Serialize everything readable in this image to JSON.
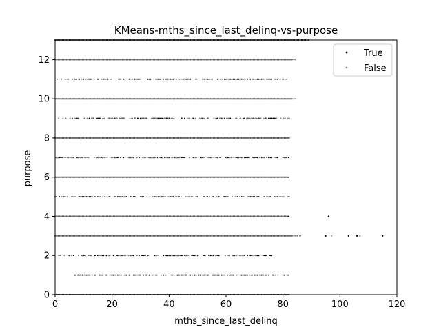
{
  "chart_data": {
    "type": "scatter",
    "title": "KMeans-mths_since_last_delinq-vs-purpose",
    "xlabel": "mths_since_last_delinq",
    "ylabel": "purpose",
    "xlim": [
      0,
      120
    ],
    "ylim": [
      0,
      13
    ],
    "xticks": [
      0,
      20,
      40,
      60,
      80,
      100,
      120
    ],
    "yticks": [
      0,
      2,
      4,
      6,
      8,
      10,
      12
    ],
    "grid": false,
    "legend_position": "top-right",
    "series": [
      {
        "name": "True",
        "color": "#000000",
        "rows": [
          {
            "y": 0,
            "xmax": 82
          },
          {
            "y": 1,
            "xmin": 7,
            "xmax": 82,
            "sparse": true
          },
          {
            "y": 2,
            "xmin": 3,
            "xmax": 77,
            "sparse": true
          },
          {
            "y": 3,
            "xmax": 83
          },
          {
            "y": 4,
            "xmax": 82
          },
          {
            "y": 5,
            "xmax": 82,
            "sparse": true
          },
          {
            "y": 6,
            "xmax": 82
          },
          {
            "y": 7,
            "xmax": 82,
            "sparse": true
          },
          {
            "y": 8,
            "xmax": 82
          },
          {
            "y": 9,
            "xmin": 6,
            "xmax": 81,
            "sparse": true
          },
          {
            "y": 10,
            "xmax": 83
          },
          {
            "y": 11,
            "xmin": 3,
            "xmax": 80,
            "sparse": true
          },
          {
            "y": 12,
            "xmax": 83
          },
          {
            "y": 13,
            "xmax": 89
          }
        ],
        "points": [
          [
            86,
            3
          ],
          [
            95,
            3
          ],
          [
            103,
            3
          ],
          [
            106,
            3
          ],
          [
            115,
            3
          ],
          [
            96,
            4
          ]
        ]
      },
      {
        "name": "False",
        "color": "#808080",
        "rows": [
          {
            "y": 0,
            "xmax": 82
          },
          {
            "y": 1,
            "xmin": 8,
            "xmax": 78,
            "sparse": true
          },
          {
            "y": 2,
            "xmin": 1,
            "xmax": 70,
            "sparse": true
          },
          {
            "y": 3,
            "xmax": 84
          },
          {
            "y": 4,
            "xmax": 81
          },
          {
            "y": 5,
            "xmax": 82,
            "sparse": true
          },
          {
            "y": 6,
            "xmax": 81
          },
          {
            "y": 7,
            "xmax": 81,
            "sparse": true
          },
          {
            "y": 8,
            "xmax": 82
          },
          {
            "y": 9,
            "xmax": 82,
            "sparse": true
          },
          {
            "y": 10,
            "xmax": 84
          },
          {
            "y": 11,
            "xmax": 82,
            "sparse": true
          },
          {
            "y": 12,
            "xmax": 84
          },
          {
            "y": 13,
            "xmax": 82
          }
        ],
        "points": [
          [
            85,
            3
          ],
          [
            97,
            3
          ],
          [
            107,
            3
          ],
          [
            46,
            1
          ]
        ]
      }
    ]
  }
}
